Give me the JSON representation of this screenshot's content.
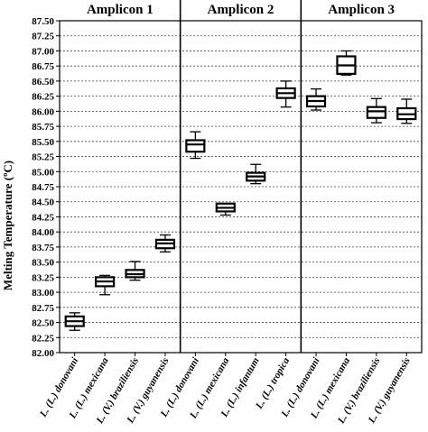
{
  "chart_data": {
    "type": "boxplot",
    "ylabel": "Melting Temperature (ºC)",
    "ylim": [
      82.0,
      87.5
    ],
    "yticks": [
      "82.00",
      "82.25",
      "82.50",
      "82.75",
      "83.00",
      "83.25",
      "83.50",
      "83.75",
      "84.00",
      "84.25",
      "84.50",
      "84.75",
      "85.00",
      "85.25",
      "85.50",
      "85.75",
      "86.00",
      "86.25",
      "86.50",
      "86.75",
      "87.00",
      "87.25",
      "87.50"
    ],
    "grid": true,
    "panels": [
      {
        "title": "Amplicon 1",
        "boxes": [
          {
            "label": "L. (L.) donovani",
            "min": 82.37,
            "q1": 82.44,
            "median": 82.52,
            "q3": 82.6,
            "max": 82.66
          },
          {
            "label": "L. (L.) mexicana",
            "min": 82.96,
            "q1": 83.1,
            "median": 83.18,
            "q3": 83.25,
            "max": 83.28
          },
          {
            "label": "L. (V.) braziliensis",
            "min": 83.2,
            "q1": 83.25,
            "median": 83.3,
            "q3": 83.37,
            "max": 83.51
          },
          {
            "label": "L. (V.) guyanensis",
            "min": 83.67,
            "q1": 83.73,
            "median": 83.81,
            "q3": 83.87,
            "max": 83.95
          }
        ]
      },
      {
        "title": "Amplicon 2",
        "boxes": [
          {
            "label": "L. (L.) donovani",
            "min": 85.22,
            "q1": 85.33,
            "median": 85.45,
            "q3": 85.52,
            "max": 85.66
          },
          {
            "label": "L. (L.) mexicana",
            "min": 84.28,
            "q1": 84.34,
            "median": 84.4,
            "q3": 84.47,
            "max": 84.47
          },
          {
            "label": "L. (L.) infantum",
            "min": 84.8,
            "q1": 84.85,
            "median": 84.92,
            "q3": 84.98,
            "max": 85.12
          },
          {
            "label": "L. (L.) tropica",
            "min": 86.07,
            "q1": 86.22,
            "median": 86.3,
            "q3": 86.38,
            "max": 86.5
          }
        ]
      },
      {
        "title": "Amplicon 3",
        "boxes": [
          {
            "label": "L. (L.) donovani",
            "min": 86.02,
            "q1": 86.08,
            "median": 86.17,
            "q3": 86.25,
            "max": 86.37
          },
          {
            "label": "L. (L.) mexicana",
            "min": 86.6,
            "q1": 86.62,
            "median": 86.76,
            "q3": 86.91,
            "max": 87.0
          },
          {
            "label": "L. (V.) braziliensis",
            "min": 85.81,
            "q1": 85.89,
            "median": 86.0,
            "q3": 86.07,
            "max": 86.21
          },
          {
            "label": "L. (V.) guyanensis",
            "min": 85.8,
            "q1": 85.87,
            "median": 85.95,
            "q3": 86.05,
            "max": 86.2
          }
        ]
      }
    ]
  }
}
